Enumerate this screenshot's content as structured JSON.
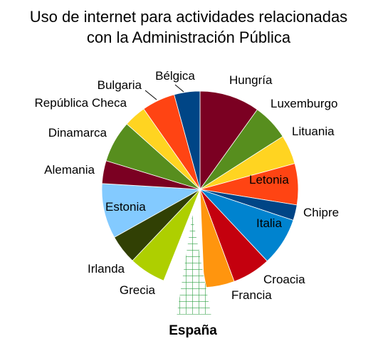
{
  "chart_data": {
    "type": "pie",
    "title_lines": [
      "Uso de internet para actividades relacionadas",
      "con la Administración Pública"
    ],
    "slices": [
      {
        "label": "Hungría",
        "value": 10.5,
        "color": "#7b0022"
      },
      {
        "label": "Luxemburgo",
        "value": 6.4,
        "color": "#578e1e"
      },
      {
        "label": "Lituania",
        "value": 5.1,
        "color": "#ffd421"
      },
      {
        "label": "Letonia",
        "value": 7.2,
        "color": "#ff4413"
      },
      {
        "label": "Chipre",
        "value": 2.7,
        "color": "#004586"
      },
      {
        "label": "Italia",
        "value": 8.4,
        "color": "#0083cf"
      },
      {
        "label": "Croacia",
        "value": 6.7,
        "color": "#c4000e"
      },
      {
        "label": "Francia",
        "value": 5.3,
        "color": "#ff950e"
      },
      {
        "label": "España",
        "value": 7.1,
        "color": "#ffffff",
        "pattern": "green-grid",
        "exploded": true
      },
      {
        "label": "Grecia",
        "value": 6.4,
        "color": "#aecf00"
      },
      {
        "label": "Irlanda",
        "value": 5.1,
        "color": "#314004"
      },
      {
        "label": "Estonia",
        "value": 9.6,
        "color": "#83caff"
      },
      {
        "label": "Alemania",
        "value": 4.0,
        "color": "#7b0022"
      },
      {
        "label": "Dinamarca",
        "value": 7.3,
        "color": "#578e1e"
      },
      {
        "label": "República Checa",
        "value": 3.9,
        "color": "#ffd421"
      },
      {
        "label": "Bulgaria",
        "value": 5.8,
        "color": "#ff4413"
      },
      {
        "label": "Bélgica",
        "value": 4.5,
        "color": "#004586"
      }
    ],
    "start_angle_deg": 90,
    "direction": "clockwise",
    "highlight_label": "España",
    "inside_labels": [
      "Letonia",
      "Italia",
      "Estonia"
    ]
  }
}
